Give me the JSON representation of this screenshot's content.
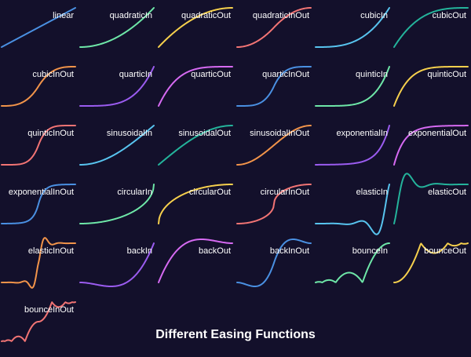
{
  "title": "Different Easing Functions",
  "colors": {
    "background": "#13102b",
    "text": "#ffffff",
    "palette": [
      "#4a90e2",
      "#6ee7a8",
      "#f6d04d",
      "#f27474",
      "#58c4ef",
      "#24b39b",
      "#f2944a",
      "#9b5cf0",
      "#d66af2"
    ]
  },
  "chart_data": {
    "type": "line",
    "title": "Different Easing Functions",
    "grid": false,
    "axes_visible": false,
    "xlim": [
      0,
      1
    ],
    "panels": [
      {
        "name": "linear",
        "color": "#4a90e2"
      },
      {
        "name": "quadraticIn",
        "color": "#6ee7a8"
      },
      {
        "name": "quadraticOut",
        "color": "#f6d04d"
      },
      {
        "name": "quadraticInOut",
        "color": "#f27474"
      },
      {
        "name": "cubicIn",
        "color": "#58c4ef"
      },
      {
        "name": "cubicOut",
        "color": "#24b39b"
      },
      {
        "name": "cubicInOut",
        "color": "#f2944a"
      },
      {
        "name": "quarticIn",
        "color": "#9b5cf0"
      },
      {
        "name": "quarticOut",
        "color": "#d66af2"
      },
      {
        "name": "quarticInOut",
        "color": "#4a90e2"
      },
      {
        "name": "quinticIn",
        "color": "#6ee7a8"
      },
      {
        "name": "quinticOut",
        "color": "#f6d04d"
      },
      {
        "name": "quinticInOut",
        "color": "#f27474"
      },
      {
        "name": "sinusoidalIn",
        "color": "#58c4ef"
      },
      {
        "name": "sinusoidalOut",
        "color": "#24b39b"
      },
      {
        "name": "sinusoidalInOut",
        "color": "#f2944a"
      },
      {
        "name": "exponentialIn",
        "color": "#9b5cf0"
      },
      {
        "name": "exponentialOut",
        "color": "#d66af2"
      },
      {
        "name": "exponentialInOut",
        "color": "#4a90e2"
      },
      {
        "name": "circularIn",
        "color": "#6ee7a8"
      },
      {
        "name": "circularOut",
        "color": "#f6d04d"
      },
      {
        "name": "circularInOut",
        "color": "#f27474"
      },
      {
        "name": "elasticIn",
        "color": "#58c4ef"
      },
      {
        "name": "elasticOut",
        "color": "#24b39b"
      },
      {
        "name": "elasticInOut",
        "color": "#f2944a"
      },
      {
        "name": "backIn",
        "color": "#9b5cf0"
      },
      {
        "name": "backOut",
        "color": "#d66af2"
      },
      {
        "name": "backInOut",
        "color": "#4a90e2"
      },
      {
        "name": "bounceIn",
        "color": "#6ee7a8"
      },
      {
        "name": "bounceOut",
        "color": "#f6d04d"
      },
      {
        "name": "bounceInOut",
        "color": "#f27474"
      }
    ]
  }
}
